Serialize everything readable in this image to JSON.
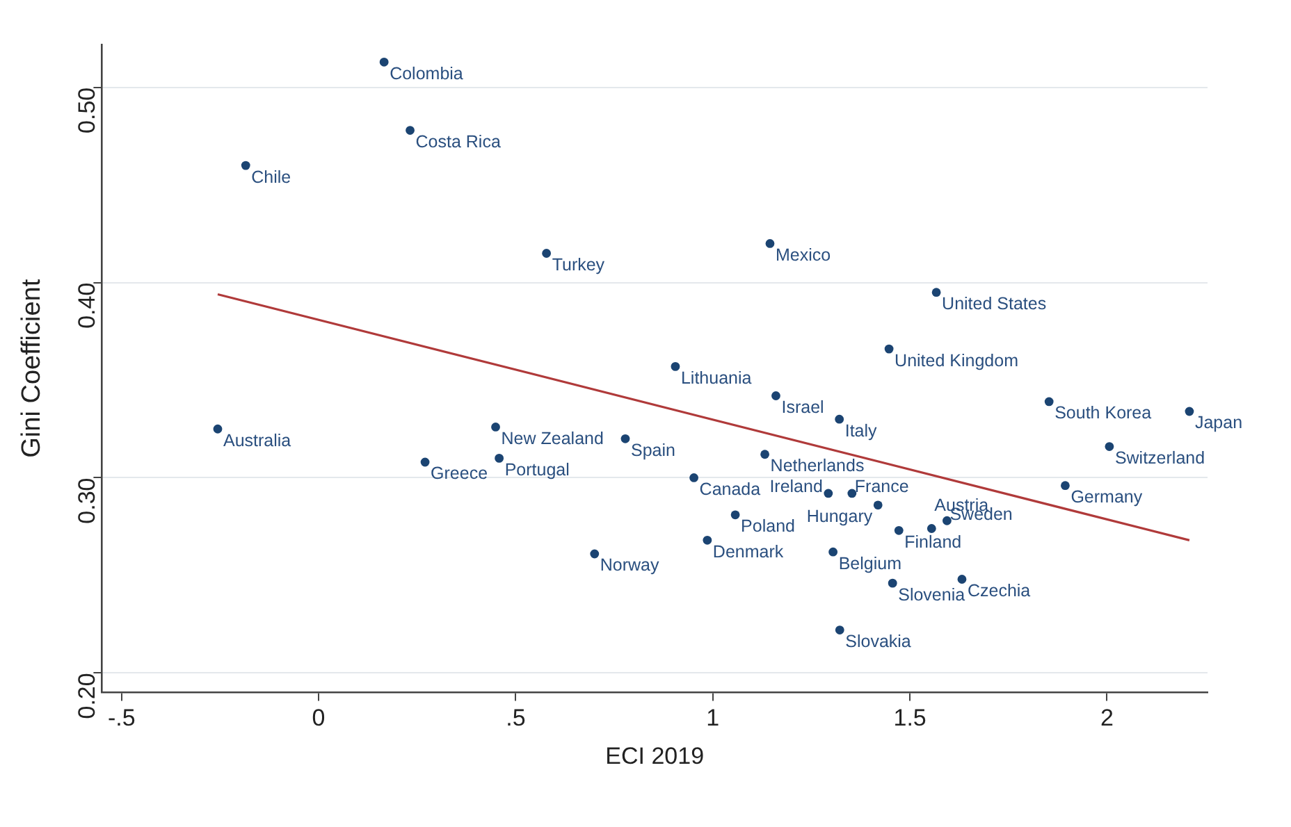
{
  "chart_data": {
    "type": "scatter",
    "xlabel": "ECI 2019",
    "ylabel": "Gini Coefficient",
    "xlim": [
      -0.55,
      2.255
    ],
    "ylim": [
      0.19,
      0.522
    ],
    "xticks": [
      {
        "value": -0.5,
        "label": "-.5"
      },
      {
        "value": 0,
        "label": "0"
      },
      {
        "value": 0.5,
        "label": ".5"
      },
      {
        "value": 1,
        "label": "1"
      },
      {
        "value": 1.5,
        "label": "1.5"
      },
      {
        "value": 2,
        "label": "2"
      }
    ],
    "yticks": [
      {
        "value": 0.2,
        "label": "0.20"
      },
      {
        "value": 0.3,
        "label": "0.30"
      },
      {
        "value": 0.4,
        "label": "0.40"
      },
      {
        "value": 0.5,
        "label": "0.50"
      }
    ],
    "grid": "y",
    "legend": false,
    "marker": "circle",
    "series": [
      {
        "color": "#1b4472",
        "x": [
          0.166,
          0.232,
          -0.185,
          0.578,
          -0.256,
          0.449,
          0.27,
          0.458,
          0.7,
          1.145,
          1.567,
          1.447,
          0.905,
          1.16,
          1.321,
          0.778,
          1.132,
          0.952,
          1.853,
          2.209,
          2.006,
          1.894,
          1.293,
          1.353,
          1.419,
          1.057,
          0.986,
          1.472,
          1.555,
          1.594,
          1.305,
          1.456,
          1.632,
          1.322
        ],
        "values": [
          0.513,
          0.478,
          0.46,
          0.415,
          0.325,
          0.326,
          0.308,
          0.31,
          0.261,
          0.42,
          0.395,
          0.366,
          0.357,
          0.342,
          0.33,
          0.32,
          0.312,
          0.3,
          0.339,
          0.334,
          0.316,
          0.296,
          0.292,
          0.292,
          0.286,
          0.281,
          0.268,
          0.273,
          0.274,
          0.278,
          0.262,
          0.246,
          0.248,
          0.222
        ]
      },
      {
        "type": "line",
        "color": "#b03a3a",
        "marker": "none",
        "x": [
          -0.256,
          2.209
        ],
        "values": [
          0.394,
          0.268
        ]
      }
    ],
    "annotations": [
      {
        "text": "Colombia",
        "x": 0.166,
        "y": 0.513
      },
      {
        "text": "Costa Rica",
        "x": 0.232,
        "y": 0.478
      },
      {
        "text": "Chile",
        "x": -0.185,
        "y": 0.46
      },
      {
        "text": "Turkey",
        "x": 0.578,
        "y": 0.415
      },
      {
        "text": "Australia",
        "x": -0.256,
        "y": 0.325
      },
      {
        "text": "New Zealand",
        "x": 0.449,
        "y": 0.326
      },
      {
        "text": "Greece",
        "x": 0.27,
        "y": 0.308
      },
      {
        "text": "Portugal",
        "x": 0.458,
        "y": 0.31
      },
      {
        "text": "Norway",
        "x": 0.7,
        "y": 0.261
      },
      {
        "text": "Mexico",
        "x": 1.145,
        "y": 0.42
      },
      {
        "text": "United States",
        "x": 1.567,
        "y": 0.395
      },
      {
        "text": "United Kingdom",
        "x": 1.447,
        "y": 0.366
      },
      {
        "text": "Lithuania",
        "x": 0.905,
        "y": 0.357
      },
      {
        "text": "Israel",
        "x": 1.16,
        "y": 0.342
      },
      {
        "text": "Italy",
        "x": 1.321,
        "y": 0.33
      },
      {
        "text": "Spain",
        "x": 0.778,
        "y": 0.32
      },
      {
        "text": "Netherlands",
        "x": 1.132,
        "y": 0.312
      },
      {
        "text": "Canada",
        "x": 0.952,
        "y": 0.3
      },
      {
        "text": "South Korea",
        "x": 1.853,
        "y": 0.339
      },
      {
        "text": "Japan",
        "x": 2.209,
        "y": 0.334
      },
      {
        "text": "Switzerland",
        "x": 2.006,
        "y": 0.316
      },
      {
        "text": "Germany",
        "x": 1.894,
        "y": 0.296
      },
      {
        "text": "Ireland",
        "x": 1.293,
        "y": 0.292
      },
      {
        "text": "France",
        "x": 1.353,
        "y": 0.292
      },
      {
        "text": "Hungary",
        "x": 1.419,
        "y": 0.286
      },
      {
        "text": "Poland",
        "x": 1.057,
        "y": 0.281
      },
      {
        "text": "Denmark",
        "x": 0.986,
        "y": 0.268
      },
      {
        "text": "Finland",
        "x": 1.472,
        "y": 0.273
      },
      {
        "text": "Austria",
        "x": 1.555,
        "y": 0.274
      },
      {
        "text": "Sweden",
        "x": 1.594,
        "y": 0.278
      },
      {
        "text": "Belgium",
        "x": 1.305,
        "y": 0.262
      },
      {
        "text": "Slovenia",
        "x": 1.456,
        "y": 0.246
      },
      {
        "text": "Czechia",
        "x": 1.632,
        "y": 0.248
      },
      {
        "text": "Slovakia",
        "x": 1.322,
        "y": 0.222
      }
    ]
  }
}
